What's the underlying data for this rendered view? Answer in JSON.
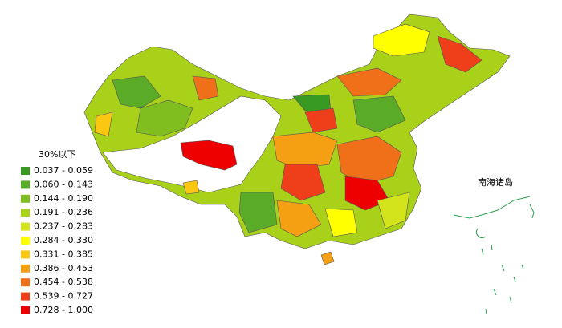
{
  "legend": {
    "title": "30%以下",
    "items": [
      {
        "label": "0.037 - 0.059",
        "color": "#389a22"
      },
      {
        "label": "0.060 - 0.143",
        "color": "#5aab28"
      },
      {
        "label": "0.144 - 0.190",
        "color": "#80bd1f"
      },
      {
        "label": "0.191 - 0.236",
        "color": "#a9d11a"
      },
      {
        "label": "0.237 - 0.283",
        "color": "#d4e41c"
      },
      {
        "label": "0.284 - 0.330",
        "color": "#ffff00"
      },
      {
        "label": "0.331 - 0.385",
        "color": "#fbc710"
      },
      {
        "label": "0.386 - 0.453",
        "color": "#f5a013"
      },
      {
        "label": "0.454 - 0.538",
        "color": "#ef7018"
      },
      {
        "label": "0.539 - 0.727",
        "color": "#ef3f1a"
      },
      {
        "label": "0.728 - 1.000",
        "color": "#ee0000"
      }
    ]
  },
  "inset": {
    "label": "南海诸岛"
  }
}
